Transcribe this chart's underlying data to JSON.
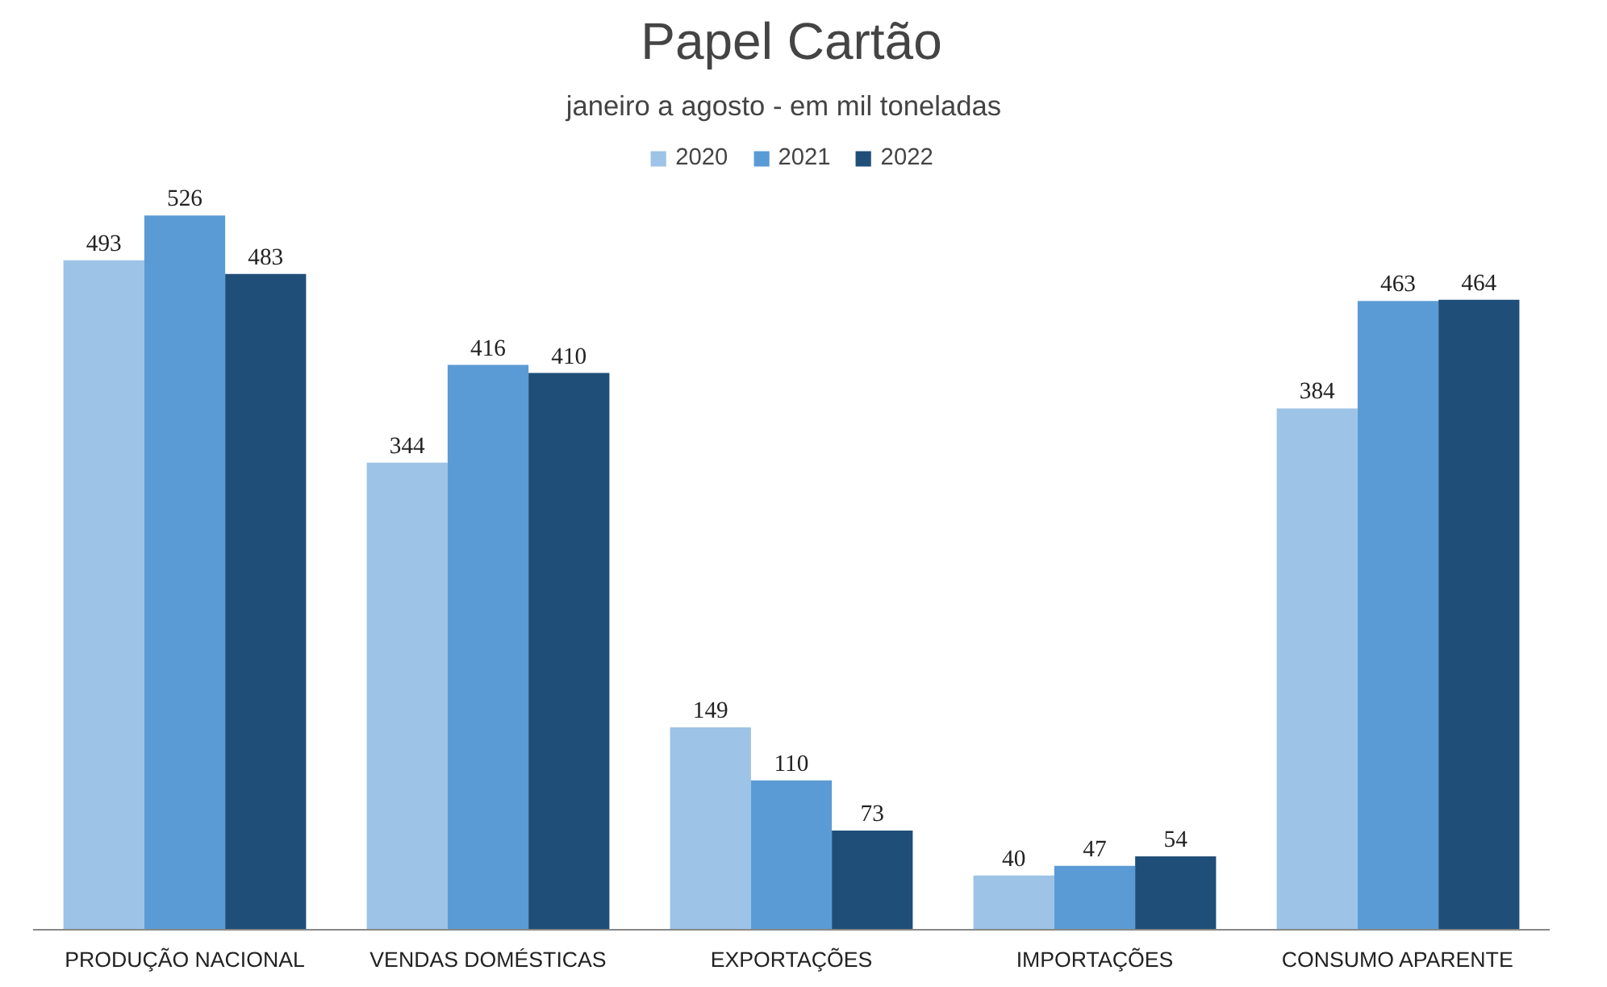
{
  "chart_data": {
    "type": "bar",
    "title": "Papel Cartão",
    "subtitle": "janeiro a agosto  -  em mil toneladas",
    "categories": [
      "PRODUÇÃO NACIONAL",
      "VENDAS DOMÉSTICAS",
      "EXPORTAÇÕES",
      "IMPORTAÇÕES",
      "CONSUMO APARENTE"
    ],
    "series": [
      {
        "name": "2020",
        "color": "#9dc3e6",
        "values": [
          493,
          344,
          149,
          40,
          384
        ]
      },
      {
        "name": "2021",
        "color": "#5b9bd5",
        "values": [
          526,
          416,
          110,
          47,
          463
        ]
      },
      {
        "name": "2022",
        "color": "#1f4e79",
        "values": [
          483,
          410,
          73,
          54,
          464
        ]
      }
    ],
    "data_labels": true,
    "legend": "top",
    "grid": false
  }
}
